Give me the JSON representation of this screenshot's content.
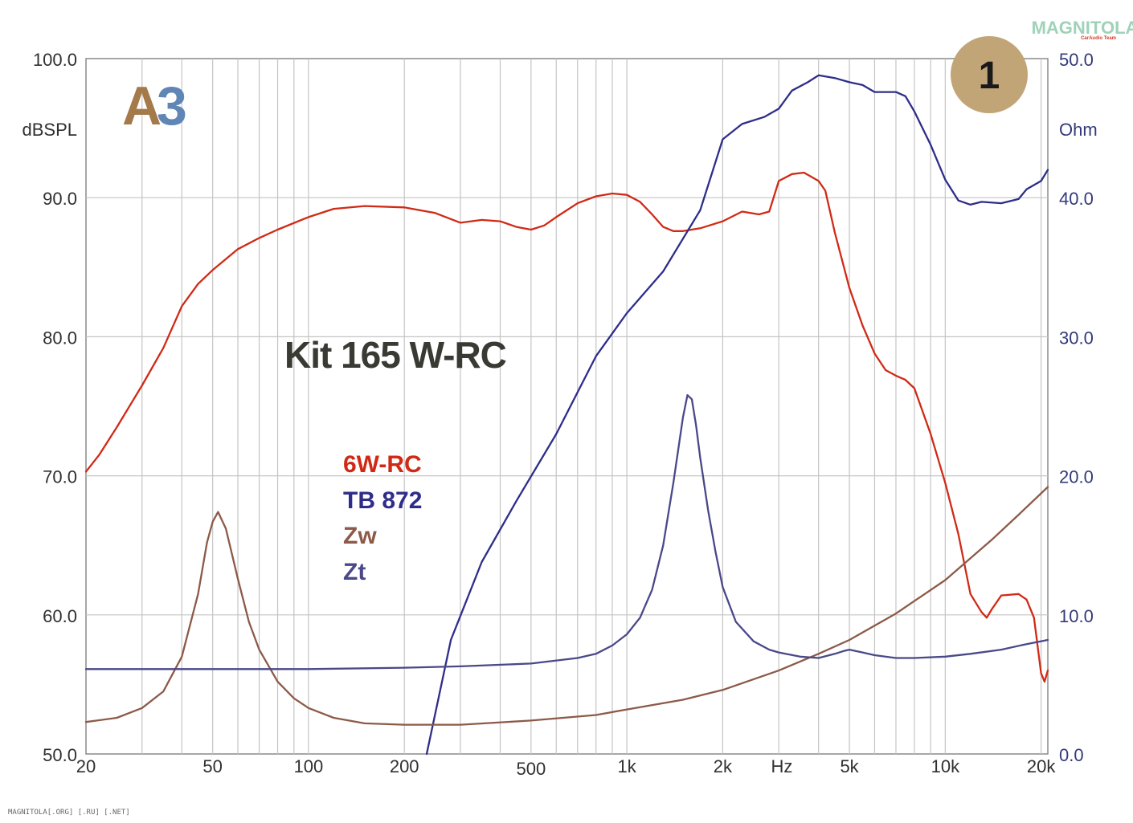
{
  "badge": {
    "number": "1",
    "color": "#c2a577"
  },
  "logo": {
    "text_a": "A",
    "text_3": "3",
    "color_a": "#a57a4a",
    "color_3": "#5f86b5"
  },
  "watermark": {
    "brand": "MAGNITOLA",
    "tagline": "CarAudio Team",
    "color": "#9fd2b8",
    "tagline_color": "#d0402a"
  },
  "footer_text": "MAGNITOLA[.ORG] [.RU] [.NET]",
  "chart_data": {
    "type": "line",
    "annotation": "Kit 165 W-RC",
    "xlabel": "Hz",
    "ylabel": "dBSPL",
    "y2label": "Ohm",
    "x_scale": "log",
    "xlim": [
      20,
      21000
    ],
    "ylim": [
      50,
      100
    ],
    "y2lim": [
      0,
      50
    ],
    "grid": true,
    "legend_placement": "center-left",
    "x_tick_labels": [
      "20",
      "50",
      "100",
      "200",
      "500",
      "1k",
      "2k",
      "5k",
      "10k",
      "20k"
    ],
    "x_tick_values": [
      20,
      50,
      100,
      200,
      500,
      1000,
      2000,
      5000,
      10000,
      20000
    ],
    "y_tick_labels": [
      "100.0",
      "90.0",
      "80.0",
      "70.0",
      "60.0",
      "50.0"
    ],
    "y_tick_values": [
      100,
      90,
      80,
      70,
      60,
      50
    ],
    "y2_tick_labels": [
      "50.0",
      "40.0",
      "30.0",
      "20.0",
      "10.0",
      "0.0"
    ],
    "y2_tick_values": [
      50,
      40,
      30,
      20,
      10,
      0
    ],
    "series": [
      {
        "name": "6W-RC",
        "axis": "left",
        "color": "#d02a16",
        "x": [
          20,
          22,
          25,
          30,
          35,
          40,
          45,
          50,
          60,
          70,
          80,
          100,
          120,
          150,
          200,
          250,
          300,
          350,
          400,
          450,
          500,
          550,
          600,
          700,
          800,
          900,
          1000,
          1100,
          1200,
          1300,
          1400,
          1500,
          1700,
          2000,
          2300,
          2600,
          2800,
          3000,
          3300,
          3600,
          3800,
          4000,
          4200,
          4500,
          5000,
          5500,
          6000,
          6500,
          7000,
          7500,
          8000,
          9000,
          10000,
          11000,
          12000,
          13000,
          13500,
          14000,
          15000,
          17000,
          18000,
          19000,
          20000,
          20500,
          21000
        ],
        "y": [
          70.3,
          71.5,
          73.5,
          76.5,
          79.2,
          82.2,
          83.8,
          84.8,
          86.3,
          87.1,
          87.7,
          88.6,
          89.2,
          89.4,
          89.3,
          88.9,
          88.2,
          88.4,
          88.3,
          87.9,
          87.7,
          88.0,
          88.6,
          89.6,
          90.1,
          90.3,
          90.2,
          89.7,
          88.8,
          87.9,
          87.6,
          87.6,
          87.8,
          88.3,
          89.0,
          88.8,
          89.0,
          91.2,
          91.7,
          91.8,
          91.5,
          91.2,
          90.5,
          87.5,
          83.5,
          80.8,
          78.8,
          77.6,
          77.2,
          76.9,
          76.3,
          73.0,
          69.5,
          65.8,
          61.5,
          60.2,
          59.8,
          60.4,
          61.4,
          61.5,
          61.1,
          59.8,
          55.8,
          55.2,
          56.0
        ]
      },
      {
        "name": "TB 872",
        "axis": "left",
        "color": "#2e2d8a",
        "x": [
          235,
          280,
          350,
          450,
          600,
          800,
          1000,
          1300,
          1700,
          2000,
          2300,
          2700,
          3000,
          3300,
          3700,
          4000,
          4500,
          5000,
          5500,
          6000,
          7000,
          7500,
          8000,
          9000,
          10000,
          11000,
          12000,
          13000,
          15000,
          17000,
          18000,
          20000,
          21000
        ],
        "y": [
          50.0,
          58.2,
          63.8,
          68.2,
          73.0,
          78.6,
          81.7,
          84.7,
          89.1,
          94.2,
          95.3,
          95.8,
          96.4,
          97.7,
          98.3,
          98.8,
          98.6,
          98.3,
          98.1,
          97.6,
          97.6,
          97.3,
          96.2,
          93.8,
          91.3,
          89.8,
          89.5,
          89.7,
          89.6,
          89.9,
          90.6,
          91.2,
          92.0
        ]
      },
      {
        "name": "Zw",
        "axis": "right",
        "color": "#8c5a48",
        "x": [
          20,
          25,
          30,
          35,
          40,
          45,
          48,
          50,
          52,
          55,
          60,
          65,
          70,
          80,
          90,
          100,
          120,
          150,
          200,
          300,
          500,
          800,
          1000,
          1500,
          2000,
          3000,
          4000,
          5000,
          7000,
          10000,
          14000,
          17000,
          21000
        ],
        "y": [
          2.3,
          2.6,
          3.3,
          4.5,
          7.0,
          11.5,
          15.2,
          16.7,
          17.4,
          16.2,
          12.6,
          9.5,
          7.5,
          5.2,
          4.0,
          3.3,
          2.6,
          2.2,
          2.1,
          2.1,
          2.4,
          2.8,
          3.2,
          3.9,
          4.6,
          6.0,
          7.2,
          8.2,
          10.1,
          12.5,
          15.4,
          17.2,
          19.2
        ]
      },
      {
        "name": "Zt",
        "axis": "right",
        "color": "#4a4888",
        "x": [
          20,
          100,
          200,
          300,
          500,
          700,
          800,
          900,
          1000,
          1100,
          1200,
          1300,
          1400,
          1500,
          1550,
          1600,
          1650,
          1700,
          1800,
          1900,
          2000,
          2200,
          2500,
          2800,
          3000,
          3500,
          4000,
          4500,
          4800,
          5000,
          5500,
          6000,
          7000,
          8000,
          10000,
          12000,
          15000,
          18000,
          21000
        ],
        "y": [
          6.1,
          6.1,
          6.2,
          6.3,
          6.5,
          6.9,
          7.2,
          7.8,
          8.6,
          9.8,
          11.8,
          15.0,
          19.5,
          24.2,
          25.8,
          25.5,
          23.6,
          21.3,
          17.5,
          14.5,
          12.0,
          9.5,
          8.1,
          7.5,
          7.3,
          7.0,
          6.9,
          7.2,
          7.4,
          7.5,
          7.3,
          7.1,
          6.9,
          6.9,
          7.0,
          7.2,
          7.5,
          7.9,
          8.2
        ]
      }
    ]
  }
}
